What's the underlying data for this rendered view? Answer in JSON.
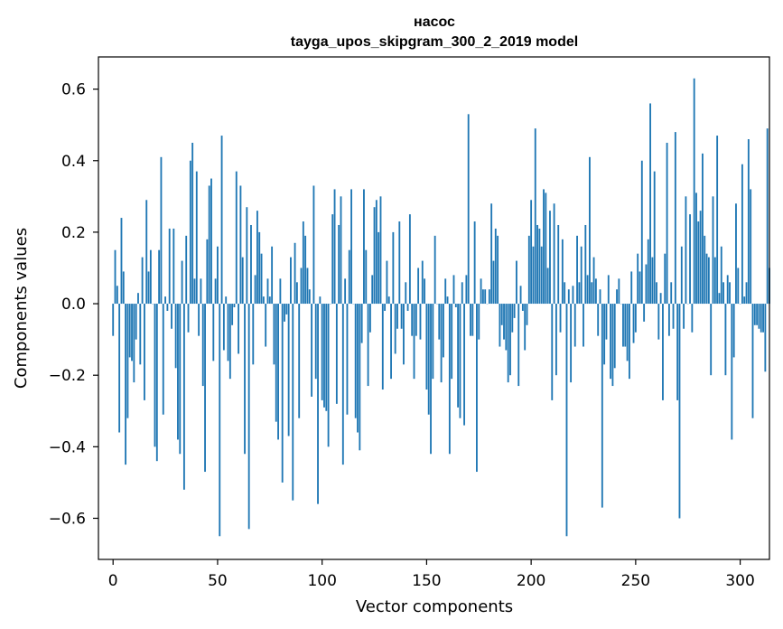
{
  "chart_data": {
    "type": "bar",
    "title_line1": "насос",
    "title_line2": "tayga_upos_skipgram_300_2_2019 model",
    "xlabel": "Vector components",
    "ylabel": "Components values",
    "xlim": [
      -7,
      314
    ],
    "ylim": [
      -0.715,
      0.69
    ],
    "xticks": [
      0,
      50,
      100,
      150,
      200,
      250,
      300
    ],
    "xtick_labels": [
      "0",
      "50",
      "100",
      "150",
      "200",
      "250",
      "300"
    ],
    "yticks": [
      -0.6,
      -0.4,
      -0.2,
      0.0,
      0.2,
      0.4,
      0.6
    ],
    "ytick_labels": [
      "−0.6",
      "−0.4",
      "−0.2",
      "0.0",
      "0.2",
      "0.4",
      "0.6"
    ],
    "bar_color": "#1f77b4",
    "values": [
      -0.09,
      0.15,
      0.05,
      -0.36,
      0.24,
      0.09,
      -0.45,
      -0.32,
      -0.15,
      -0.16,
      -0.22,
      -0.1,
      0.03,
      -0.17,
      0.13,
      -0.27,
      0.29,
      0.09,
      0.15,
      0.0,
      -0.4,
      -0.44,
      0.15,
      0.41,
      -0.31,
      0.02,
      -0.02,
      0.21,
      -0.07,
      0.21,
      -0.18,
      -0.38,
      -0.42,
      0.12,
      -0.52,
      0.19,
      -0.08,
      0.4,
      0.45,
      0.07,
      0.37,
      -0.09,
      0.07,
      -0.23,
      -0.47,
      0.18,
      0.33,
      0.35,
      -0.16,
      0.07,
      0.16,
      -0.65,
      0.47,
      -0.13,
      0.02,
      -0.16,
      -0.21,
      -0.06,
      -0.01,
      0.37,
      -0.14,
      0.33,
      0.13,
      -0.42,
      0.27,
      -0.63,
      0.22,
      -0.17,
      0.08,
      0.26,
      0.2,
      0.14,
      0.02,
      -0.12,
      0.07,
      0.02,
      0.16,
      -0.17,
      -0.33,
      -0.38,
      0.07,
      -0.5,
      -0.05,
      -0.03,
      -0.37,
      0.13,
      -0.55,
      0.17,
      0.06,
      -0.32,
      0.1,
      0.23,
      0.19,
      0.1,
      0.04,
      -0.26,
      0.33,
      -0.21,
      -0.56,
      0.02,
      -0.27,
      -0.29,
      -0.3,
      -0.4,
      0.0,
      0.25,
      0.32,
      -0.28,
      0.22,
      0.3,
      -0.45,
      0.07,
      -0.31,
      0.15,
      0.32,
      0.0,
      -0.32,
      -0.36,
      -0.41,
      -0.11,
      0.32,
      0.15,
      -0.23,
      -0.08,
      0.08,
      0.27,
      0.29,
      0.2,
      0.3,
      -0.24,
      -0.02,
      0.12,
      0.02,
      -0.21,
      0.2,
      -0.14,
      -0.07,
      0.23,
      -0.07,
      -0.17,
      0.06,
      -0.02,
      0.25,
      -0.09,
      -0.21,
      -0.09,
      0.1,
      -0.1,
      0.12,
      0.07,
      -0.24,
      -0.31,
      -0.42,
      -0.21,
      0.19,
      0.0,
      -0.1,
      -0.22,
      -0.15,
      0.07,
      0.02,
      -0.42,
      -0.21,
      0.08,
      -0.01,
      -0.29,
      -0.32,
      0.06,
      -0.34,
      0.08,
      0.53,
      -0.09,
      -0.09,
      0.23,
      -0.47,
      -0.1,
      0.07,
      0.04,
      0.04,
      0.0,
      0.04,
      0.28,
      0.12,
      0.21,
      0.19,
      -0.12,
      -0.06,
      -0.1,
      -0.13,
      -0.22,
      -0.2,
      -0.08,
      -0.04,
      0.12,
      -0.23,
      0.05,
      -0.02,
      -0.13,
      -0.06,
      0.19,
      0.29,
      0.16,
      0.49,
      0.22,
      0.21,
      0.16,
      0.32,
      0.31,
      0.1,
      0.26,
      -0.27,
      0.28,
      -0.2,
      0.22,
      -0.08,
      0.18,
      0.06,
      -0.65,
      0.04,
      -0.22,
      0.05,
      -0.12,
      0.19,
      0.06,
      0.16,
      -0.12,
      0.22,
      0.08,
      0.41,
      0.06,
      0.13,
      0.07,
      -0.09,
      0.04,
      -0.57,
      -0.17,
      -0.1,
      0.08,
      -0.21,
      -0.23,
      -0.18,
      0.04,
      0.07,
      0.0,
      -0.12,
      -0.12,
      -0.16,
      -0.21,
      0.09,
      -0.11,
      -0.08,
      0.14,
      0.09,
      0.4,
      -0.05,
      0.11,
      0.18,
      0.56,
      0.13,
      0.37,
      0.06,
      -0.1,
      0.03,
      -0.27,
      0.14,
      0.45,
      -0.09,
      0.06,
      -0.07,
      0.48,
      -0.27,
      -0.6,
      0.16,
      -0.07,
      0.3,
      0.0,
      0.25,
      -0.08,
      0.63,
      0.31,
      0.23,
      0.26,
      0.42,
      0.19,
      0.14,
      0.13,
      -0.2,
      0.3,
      0.13,
      0.47,
      0.03,
      0.16,
      0.06,
      -0.2,
      0.08,
      0.06,
      -0.38,
      -0.15,
      0.28,
      0.1,
      0.0,
      0.39,
      0.02,
      0.06,
      0.46,
      0.32,
      -0.32,
      -0.06,
      -0.06,
      -0.07,
      -0.08,
      -0.08,
      -0.19,
      0.49,
      0.1
    ]
  }
}
